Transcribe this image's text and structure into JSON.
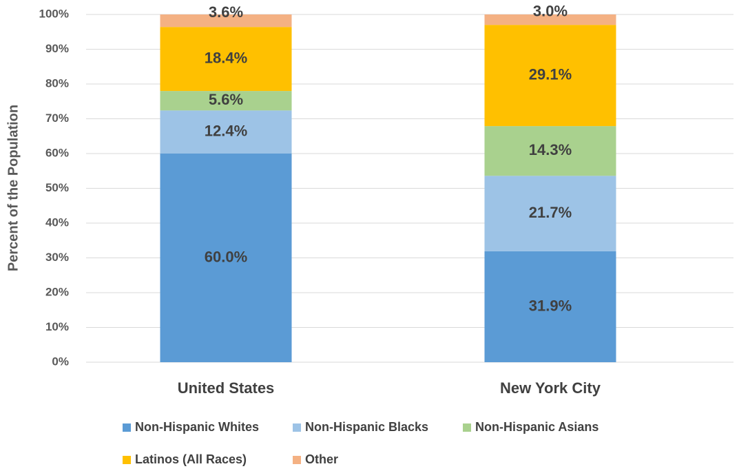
{
  "chart_data": {
    "type": "stacked_bar",
    "y_axis_label": "Percent of the Population",
    "categories": [
      "United States",
      "New York City"
    ],
    "series": [
      {
        "name": "Non-Hispanic Whites",
        "color": "#5b9bd5",
        "values": [
          60.0,
          31.9
        ],
        "value_labels": [
          "60.0%",
          "31.9%"
        ]
      },
      {
        "name": "Non-Hispanic Blacks",
        "color": "#9dc3e6",
        "values": [
          12.4,
          21.7
        ],
        "value_labels": [
          "12.4%",
          "21.7%"
        ]
      },
      {
        "name": "Non-Hispanic Asians",
        "color": "#a9d18e",
        "values": [
          5.6,
          14.3
        ],
        "value_labels": [
          "5.6%",
          "14.3%"
        ]
      },
      {
        "name": "Latinos (All Races)",
        "color": "#ffc000",
        "values": [
          18.4,
          29.1
        ],
        "value_labels": [
          "18.4%",
          "29.1%"
        ]
      },
      {
        "name": "Other",
        "color": "#f4b183",
        "values": [
          3.6,
          3.0
        ],
        "value_labels": [
          "3.6%",
          "3.0%"
        ]
      }
    ],
    "ylim": [
      0,
      100
    ],
    "yticks": [
      {
        "value": 0,
        "label": "0%"
      },
      {
        "value": 10,
        "label": "10%"
      },
      {
        "value": 20,
        "label": "20%"
      },
      {
        "value": 30,
        "label": "30%"
      },
      {
        "value": 40,
        "label": "40%"
      },
      {
        "value": 50,
        "label": "50%"
      },
      {
        "value": 60,
        "label": "60%"
      },
      {
        "value": 70,
        "label": "70%"
      },
      {
        "value": 80,
        "label": "80%"
      },
      {
        "value": 90,
        "label": "90%"
      },
      {
        "value": 100,
        "label": "100%"
      }
    ],
    "grid": true,
    "legend": "bottom"
  }
}
